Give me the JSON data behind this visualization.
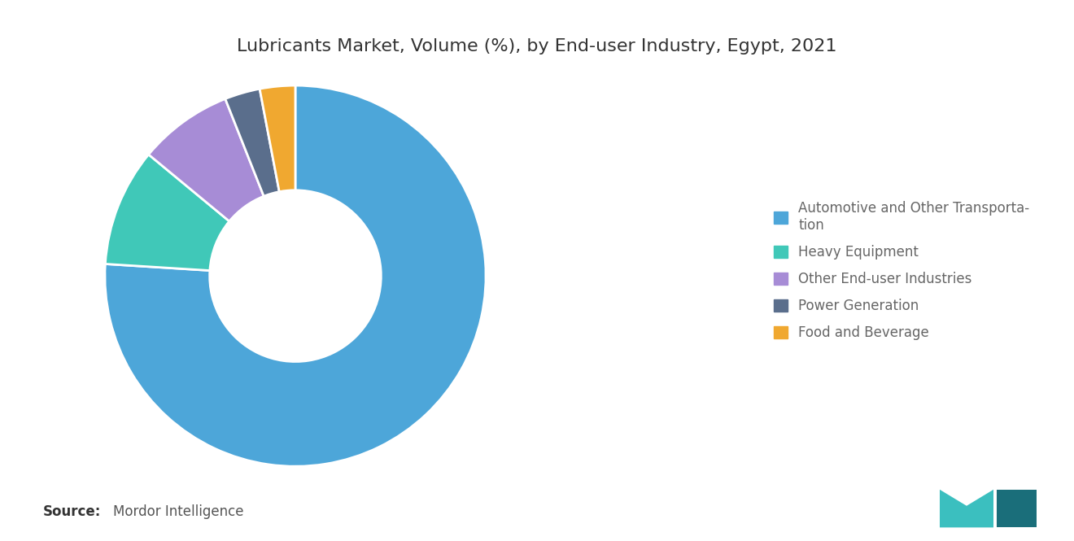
{
  "title": "Lubricants Market, Volume (%), by End-user Industry, Egypt, 2021",
  "labels": [
    "Automotive and Other Transporta-\ntion",
    "Heavy Equipment",
    "Other End-user Industries",
    "Power Generation",
    "Food and Beverage"
  ],
  "values": [
    76,
    10,
    8,
    3,
    3
  ],
  "colors": [
    "#4da6d9",
    "#40c8b8",
    "#a78cd6",
    "#5a6e8c",
    "#f0a830"
  ],
  "source_bold": "Source:",
  "source_text": "Mordor Intelligence",
  "background_color": "#ffffff",
  "title_fontsize": 16,
  "legend_fontsize": 12,
  "source_fontsize": 12
}
